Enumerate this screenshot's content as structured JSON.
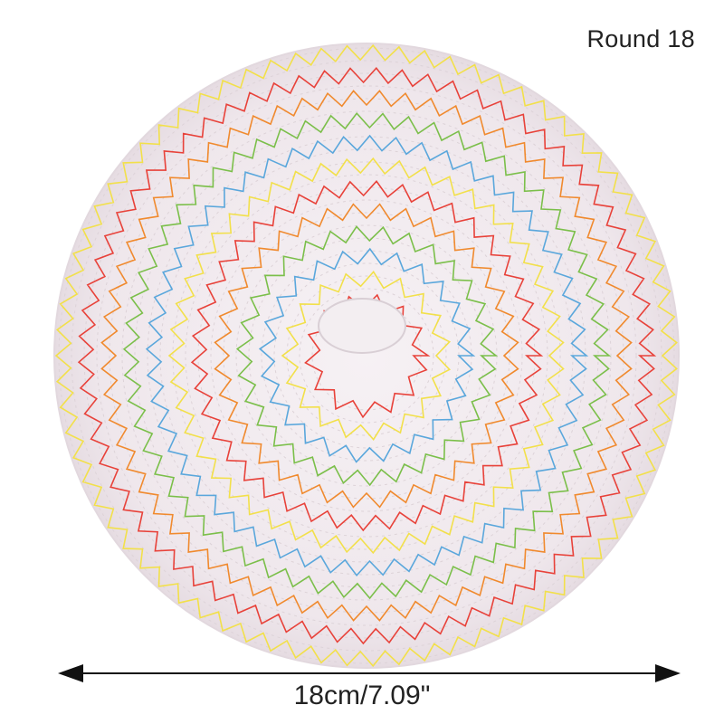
{
  "product": {
    "title": "Round 18",
    "dimension_label": "18cm/7.09\"",
    "mat_color": "#efe8ec",
    "rope_shade": "#ddd3d8",
    "stitch_colors": [
      "#e8423a",
      "#f2e04a",
      "#5aa7dc",
      "#7bbf4a",
      "#f08a2e"
    ]
  }
}
